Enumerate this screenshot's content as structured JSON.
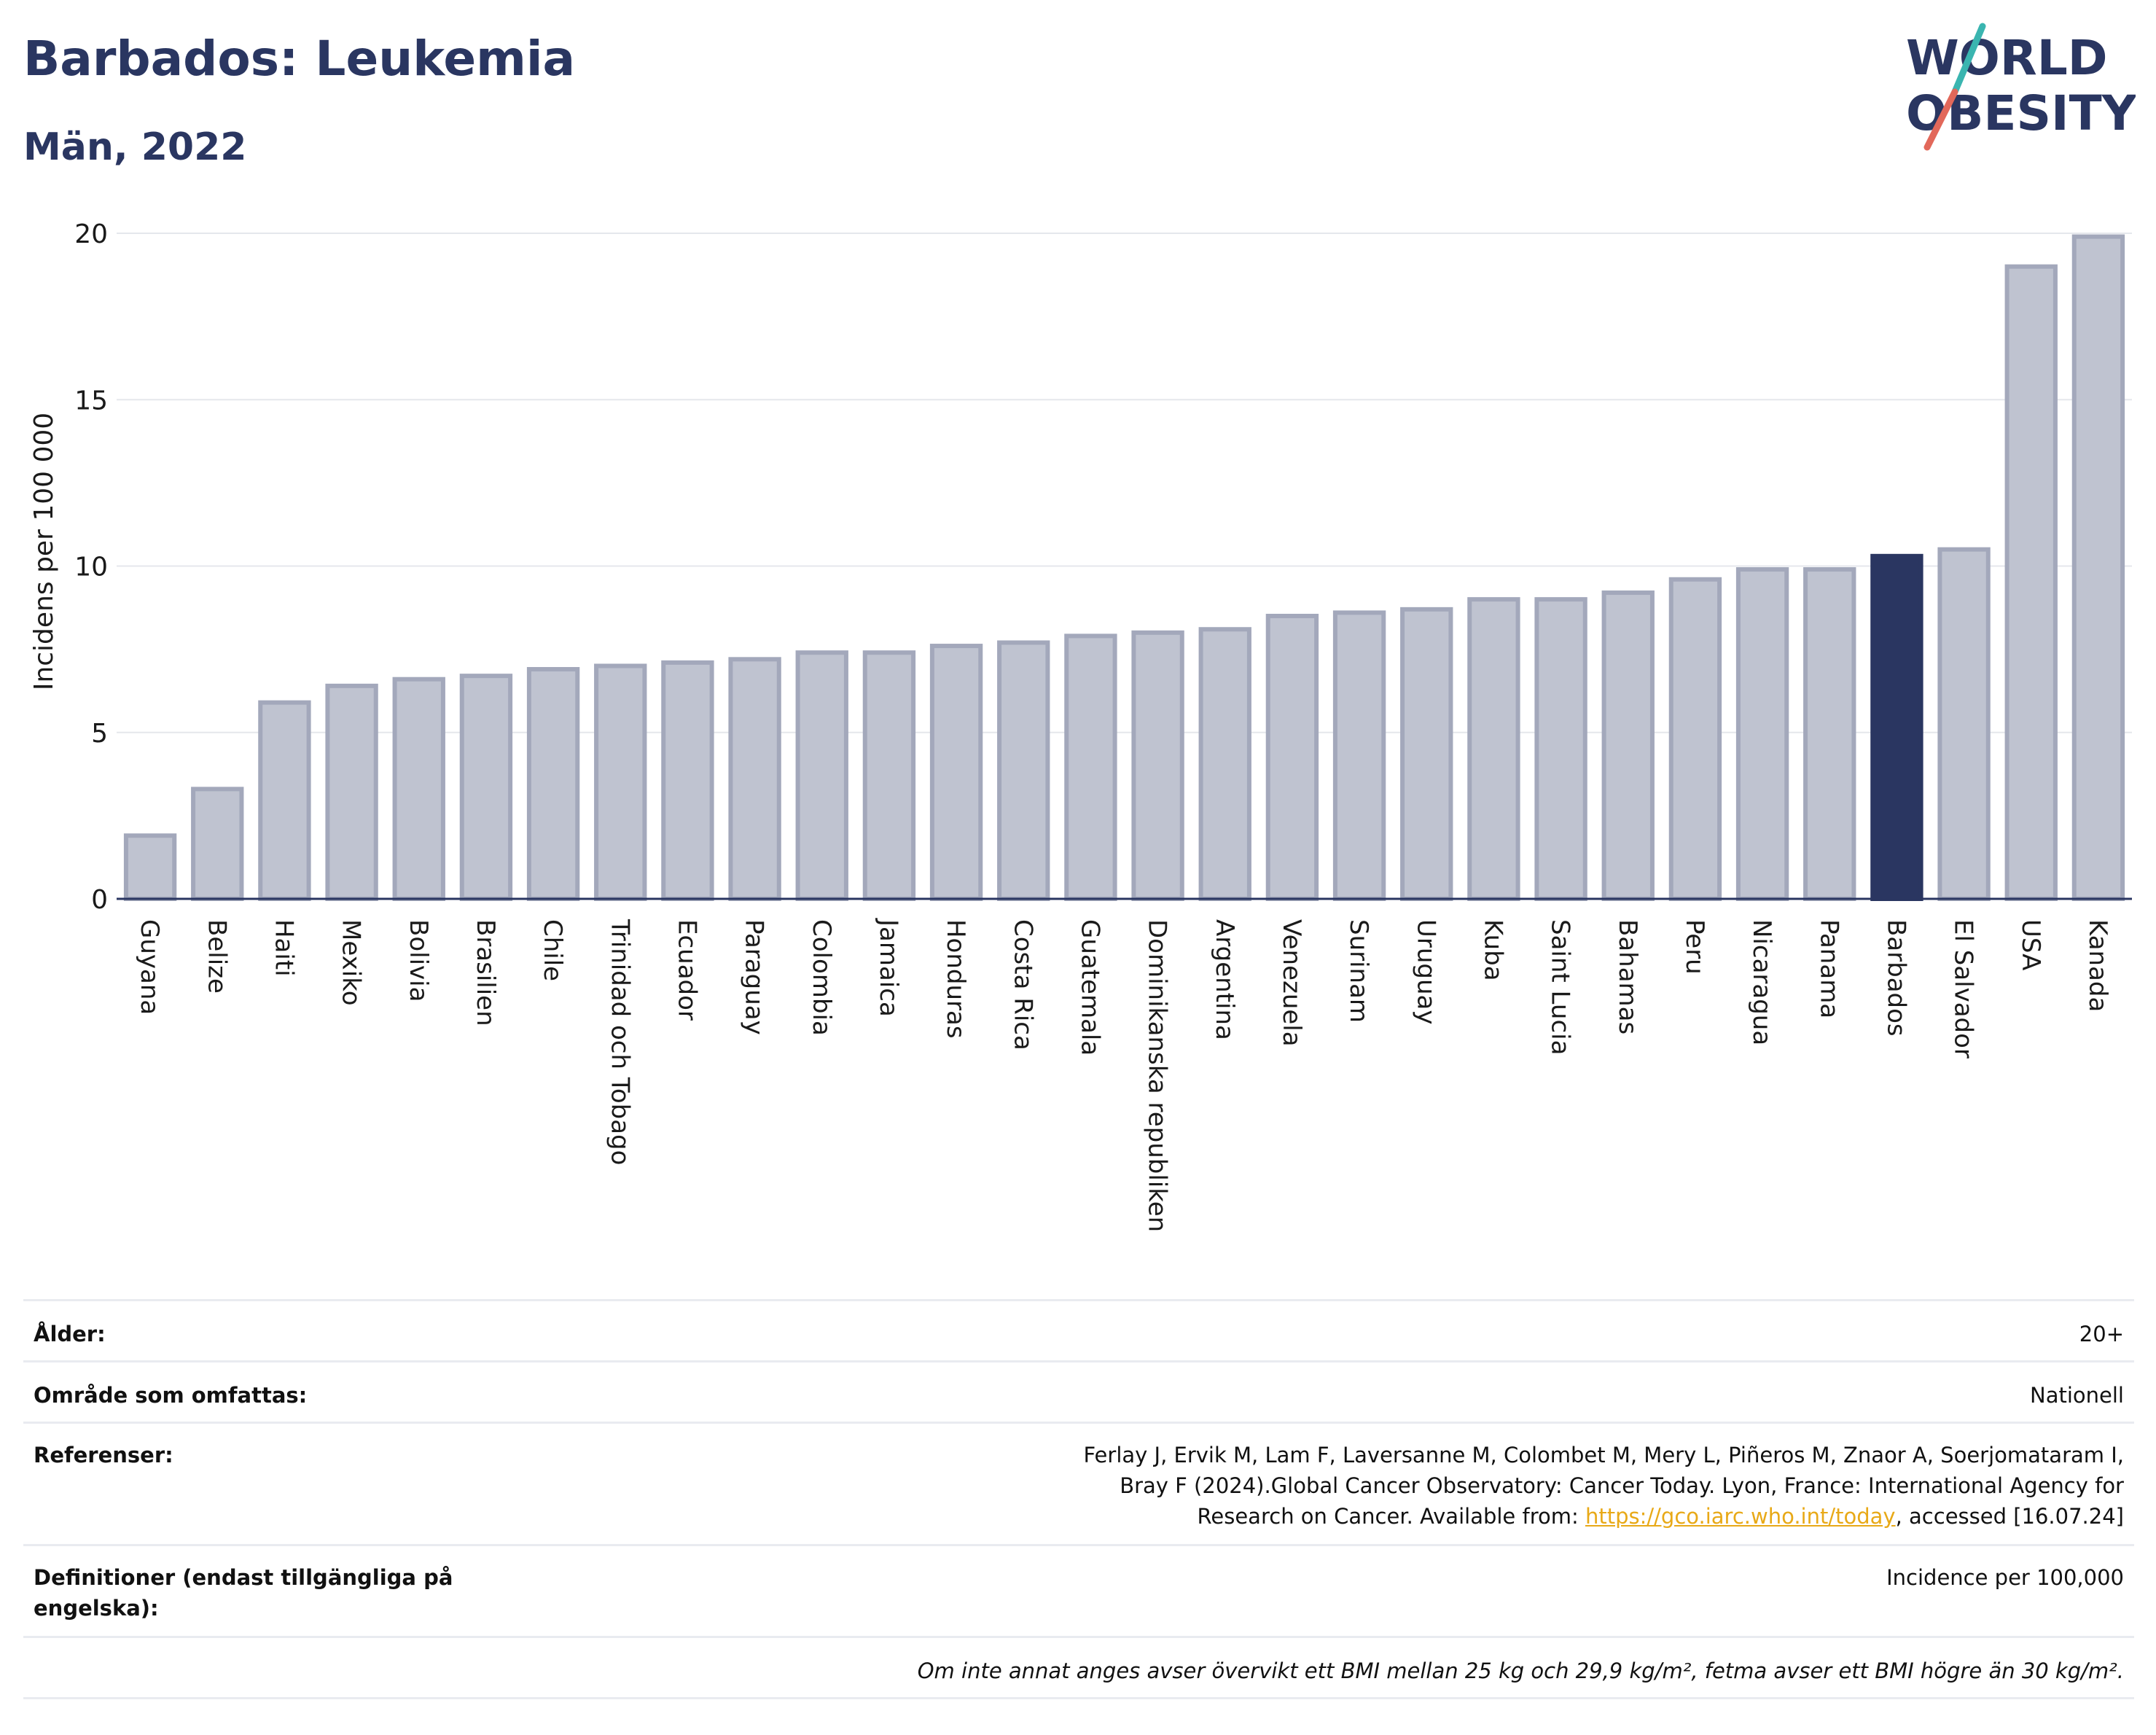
{
  "header": {
    "title": "Barbados: Leukemia",
    "subtitle": "Män, 2022"
  },
  "logo": {
    "line1": "WORLD",
    "line2": "OBESITY",
    "colors": {
      "text": "#2a3661",
      "slash_top": "#3ab5b0",
      "slash_bottom": "#e2685a"
    }
  },
  "chart_data": {
    "type": "bar",
    "ylabel": "Incidens per 100 000",
    "ylim": [
      0,
      20
    ],
    "yticks": [
      0,
      5,
      10,
      15,
      20
    ],
    "grid": true,
    "categories": [
      "Guyana",
      "Belize",
      "Haiti",
      "Mexiko",
      "Bolivia",
      "Brasilien",
      "Chile",
      "Trinidad och Tobago",
      "Ecuador",
      "Paraguay",
      "Colombia",
      "Jamaica",
      "Honduras",
      "Costa Rica",
      "Guatemala",
      "Dominikanska republiken",
      "Argentina",
      "Venezuela",
      "Surinam",
      "Uruguay",
      "Kuba",
      "Saint Lucia",
      "Bahamas",
      "Peru",
      "Nicaragua",
      "Panama",
      "Barbados",
      "El Salvador",
      "USA",
      "Kanada"
    ],
    "values": [
      1.9,
      3.3,
      5.9,
      6.4,
      6.6,
      6.7,
      6.9,
      7.0,
      7.1,
      7.2,
      7.4,
      7.4,
      7.6,
      7.7,
      7.9,
      8.0,
      8.1,
      8.5,
      8.6,
      8.7,
      9.0,
      9.0,
      9.2,
      9.6,
      9.9,
      9.9,
      10.3,
      10.5,
      19.0,
      19.9
    ],
    "highlight": "Barbados",
    "colors": {
      "bar": "#bfc3d0",
      "bar_border": "#a3a8bb",
      "highlight": "#2a3661",
      "grid": "#e5e7ec",
      "axis": "#2a3661"
    }
  },
  "info": {
    "rows": [
      {
        "key": "Ålder:",
        "value": "20+"
      },
      {
        "key": "Område som omfattas:",
        "value": "Nationell"
      },
      {
        "key": "Referenser:",
        "value_pre": "Ferlay J, Ervik M, Lam F, Laversanne M, Colombet M, Mery L, Piñeros M, Znaor A, Soerjomataram I, Bray F (2024).Global Cancer Observatory: Cancer Today. Lyon, France: International Agency for Research on Cancer. Available from: ",
        "link": "https://gco.iarc.who.int/today",
        "value_post": ", accessed [16.07.24]"
      },
      {
        "key": "Definitioner (endast tillgängliga på engelska):",
        "value": "Incidence per 100,000"
      }
    ],
    "note": "Om inte annat anges avser övervikt ett BMI mellan 25 kg och 29,9 kg/m², fetma avser ett BMI högre än 30 kg/m²."
  }
}
